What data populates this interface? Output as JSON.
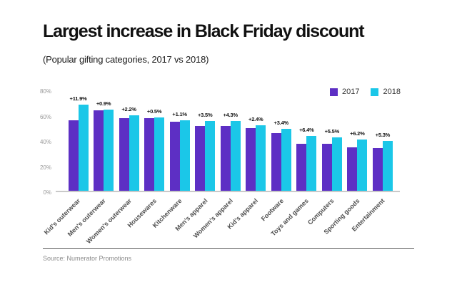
{
  "header": {
    "title": "Largest increase in Black Friday discount",
    "subtitle": "(Popular gifting categories, 2017 vs 2018)"
  },
  "footer": {
    "source": "Source: Numerator Promotions"
  },
  "colors": {
    "series_2017": "#5D2FC4",
    "series_2018": "#1BC7E8",
    "axis_line": "#C9C9C9",
    "value_label": "#111111"
  },
  "chart_data": {
    "type": "bar",
    "title": "Largest increase in Black Friday discount",
    "subtitle": "(Popular gifting categories, 2017 vs 2018)",
    "categories": [
      "Kid's outerwear",
      "Men's outerwear",
      "Women's outerwear",
      "Housewares",
      "Kitchenware",
      "Men's apparel",
      "Women's apparel",
      "Kid's apparel",
      "Footware",
      "Toys and games",
      "Computers",
      "Sporting goods",
      "Entertainment"
    ],
    "series": [
      {
        "name": "2017",
        "color": "#5D2FC4",
        "values": [
          56.0,
          63.5,
          57.5,
          57.5,
          54.5,
          51.5,
          51.0,
          49.5,
          45.5,
          37.0,
          37.0,
          34.5,
          34.0
        ]
      },
      {
        "name": "2018",
        "color": "#1BC7E8",
        "values": [
          67.9,
          64.4,
          59.7,
          58.0,
          55.6,
          55.0,
          55.3,
          51.9,
          48.9,
          43.4,
          42.5,
          40.7,
          39.3
        ]
      }
    ],
    "diff_labels": [
      "+11.9%",
      "+0.9%",
      "+2.2%",
      "+0.5%",
      "+1.1%",
      "+3.5%",
      "+4.3%",
      "+2.4%",
      "+3.4%",
      "+6.4%",
      "+5.5%",
      "+6.2%",
      "+5.3%"
    ],
    "y_tick_labels": [
      "80%",
      "60%",
      "40%",
      "20%",
      "0%"
    ],
    "ylim": [
      0,
      80
    ],
    "ylabel": "",
    "xlabel": "",
    "grid": false,
    "legend_position": "top-right"
  }
}
